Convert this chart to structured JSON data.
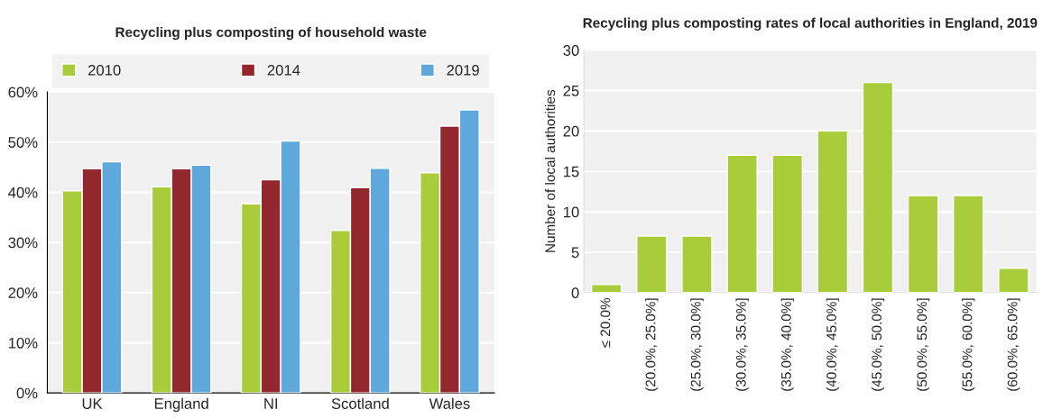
{
  "chart_data": [
    {
      "type": "bar",
      "title": "Recycling plus composting of household waste",
      "categories": [
        "UK",
        "England",
        "NI",
        "Scotland",
        "Wales"
      ],
      "series": [
        {
          "name": "2010",
          "color": "#a8cc3a",
          "values": [
            40.3,
            41.1,
            37.7,
            32.4,
            43.9
          ]
        },
        {
          "name": "2014",
          "color": "#93272e",
          "values": [
            44.7,
            44.7,
            42.5,
            40.9,
            53.2
          ]
        },
        {
          "name": "2019",
          "color": "#5fa8dc",
          "values": [
            46.1,
            45.4,
            50.2,
            44.8,
            56.4
          ]
        }
      ],
      "ylim": [
        0,
        60
      ],
      "yticks": [
        {
          "value": 0,
          "label": "0%"
        },
        {
          "value": 10,
          "label": "10%"
        },
        {
          "value": 20,
          "label": "20%"
        },
        {
          "value": 30,
          "label": "30%"
        },
        {
          "value": 40,
          "label": "40%"
        },
        {
          "value": 50,
          "label": "50%"
        },
        {
          "value": 60,
          "label": "60%"
        }
      ],
      "grid": "y",
      "legend": "top"
    },
    {
      "type": "bar",
      "title": "Recycling plus composting rates of local authorities in England, 2019",
      "ylabel": "Number of local authorities",
      "categories": [
        "≤ 20.0%",
        "(20.0%, 25.0%]",
        "(25.0%, 30.0%]",
        "(30.0%, 35.0%]",
        "(35.0%, 40.0%]",
        "(40.0%, 45.0%]",
        "(45.0%, 50.0%]",
        "(50.0%, 55.0%]",
        "(55.0%, 60.0%]",
        "(60.0%, 65.0%]"
      ],
      "series": [
        {
          "color": "#a8cc3a",
          "values": [
            1,
            7,
            7,
            17,
            17,
            20,
            26,
            12,
            12,
            3
          ]
        }
      ],
      "ylim": [
        0,
        30
      ],
      "yticks": [
        0,
        5,
        10,
        15,
        20,
        25,
        30
      ],
      "grid": "y"
    }
  ]
}
